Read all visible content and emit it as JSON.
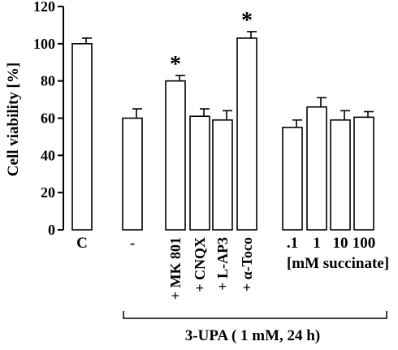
{
  "chart_data": {
    "type": "bar",
    "ylabel": "Cell viability [%]",
    "ylim": [
      0,
      120
    ],
    "yticks": [
      0,
      20,
      40,
      60,
      80,
      100,
      120
    ],
    "grid": false,
    "categories": [
      "C",
      "-",
      "+ MK 801",
      "+ CNQX",
      "+ L-AP3",
      "+ α-Toco",
      ".1",
      "1",
      "10",
      "100"
    ],
    "values": [
      100,
      60,
      80,
      61,
      59,
      103,
      55,
      66,
      59,
      60.5
    ],
    "errors": [
      3,
      5,
      3,
      4,
      5,
      3.5,
      4,
      5,
      5,
      3
    ],
    "significant": [
      false,
      false,
      true,
      false,
      false,
      true,
      false,
      false,
      false,
      false
    ],
    "significance_marker": "*",
    "group_label_succinate": "[mM succinate]",
    "bracket_label": "3-UPA ( 1 mM, 24 h)"
  }
}
